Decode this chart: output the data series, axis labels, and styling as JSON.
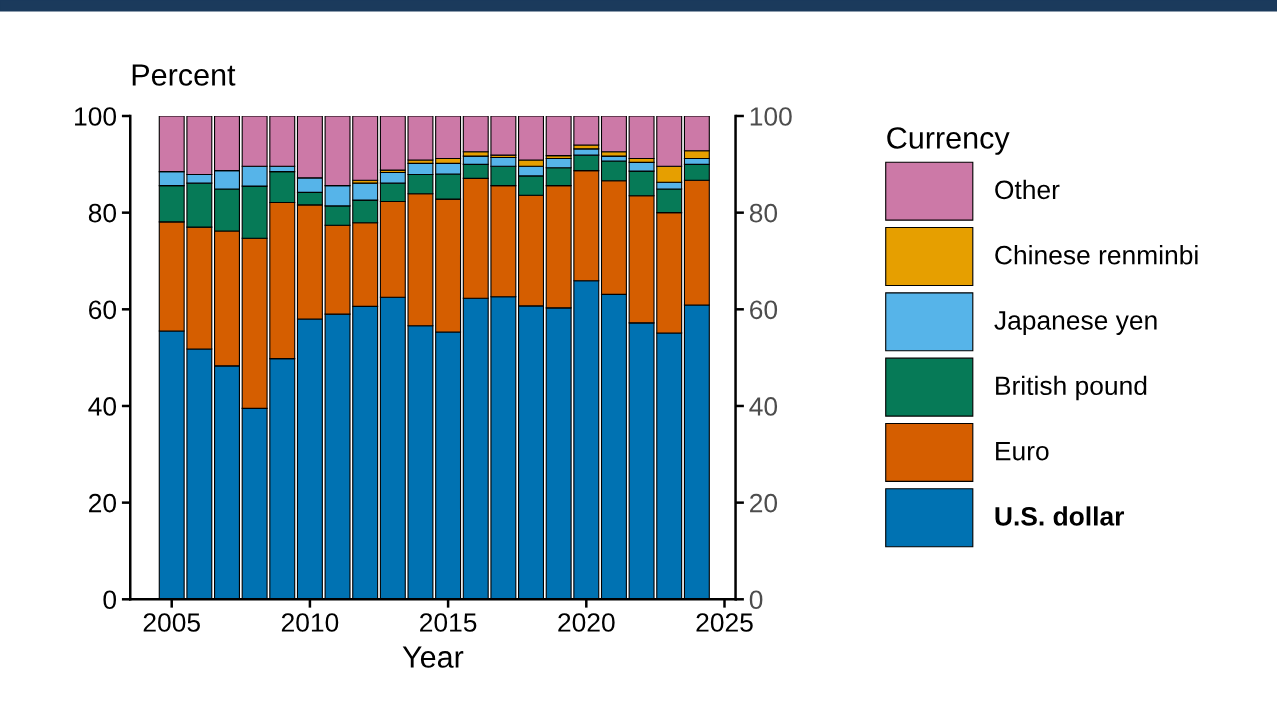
{
  "chart_data": {
    "type": "bar",
    "stacked": true,
    "xlabel": "Year",
    "ylabel": "Percent",
    "legend_title": "Currency",
    "legend": "right",
    "grid": false,
    "x": [
      2005,
      2006,
      2007,
      2008,
      2009,
      2010,
      2011,
      2012,
      2013,
      2014,
      2015,
      2016,
      2017,
      2018,
      2019,
      2020,
      2021,
      2022,
      2023,
      2024
    ],
    "xlim": [
      2003.5,
      2025.4
    ],
    "xticks": [
      2005,
      2010,
      2015,
      2020,
      2025
    ],
    "ylim": [
      0,
      100
    ],
    "yticks": [
      0,
      20,
      40,
      60,
      80,
      100
    ],
    "y2lim": [
      0,
      100
    ],
    "y2ticks": [
      0,
      20,
      40,
      60,
      80,
      100
    ],
    "series": [
      {
        "name": "U.S. dollar",
        "color": "#0072b2",
        "values": [
          55.5,
          51.8,
          48.3,
          39.5,
          49.8,
          58.0,
          59.0,
          60.6,
          62.5,
          56.6,
          55.3,
          62.3,
          62.6,
          60.7,
          60.3,
          65.9,
          63.1,
          57.2,
          55.1,
          60.9
        ]
      },
      {
        "name": "Euro",
        "color": "#d55e00",
        "values": [
          22.6,
          25.2,
          27.9,
          35.2,
          32.3,
          23.6,
          18.4,
          17.3,
          19.8,
          27.3,
          27.5,
          24.8,
          23.0,
          22.9,
          25.3,
          22.8,
          23.5,
          26.3,
          24.9,
          25.8
        ]
      },
      {
        "name": "British pound",
        "color": "#067a57",
        "values": [
          7.5,
          9.1,
          8.7,
          10.8,
          6.4,
          2.6,
          4.0,
          4.7,
          3.8,
          4.0,
          5.2,
          2.9,
          4.0,
          4.0,
          3.7,
          3.2,
          4.1,
          5.1,
          4.9,
          3.3
        ]
      },
      {
        "name": "Japanese yen",
        "color": "#56b4e9",
        "values": [
          2.9,
          1.8,
          3.8,
          4.1,
          1.1,
          3.0,
          4.2,
          3.5,
          2.2,
          2.3,
          2.2,
          1.7,
          1.8,
          2.0,
          1.9,
          1.3,
          1.0,
          1.8,
          1.4,
          1.2
        ]
      },
      {
        "name": "Chinese renminbi",
        "color": "#e69f00",
        "values": [
          null,
          null,
          null,
          null,
          null,
          null,
          null,
          0.6,
          0.5,
          0.7,
          1.0,
          0.9,
          0.5,
          1.3,
          0.6,
          0.8,
          0.9,
          0.8,
          3.3,
          1.6
        ]
      },
      {
        "name": "Other",
        "color": "#cc79a7",
        "values": [
          11.5,
          12.1,
          11.3,
          10.4,
          10.4,
          12.8,
          14.4,
          13.3,
          11.2,
          9.1,
          8.8,
          7.4,
          8.1,
          9.1,
          8.2,
          6.0,
          7.4,
          8.8,
          10.4,
          7.2
        ]
      }
    ]
  }
}
